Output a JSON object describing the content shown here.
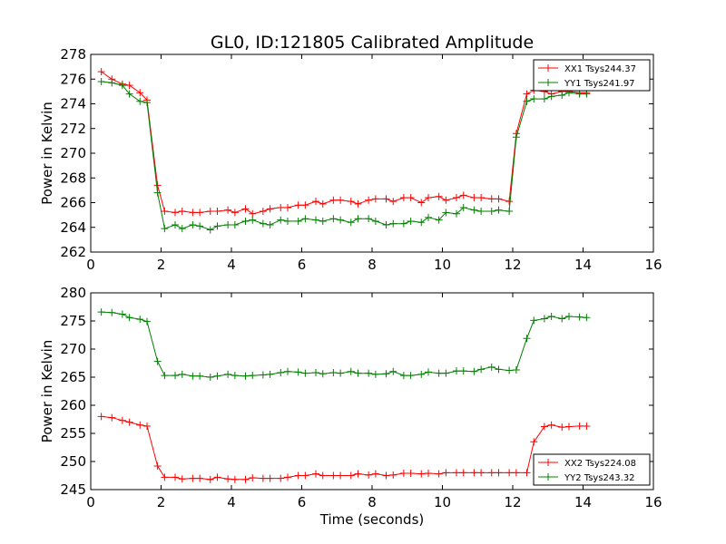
{
  "figure": {
    "title": "GL0, ID:121805 Calibrated Amplitude",
    "xlabel": "Time (seconds)"
  },
  "chart_data": [
    {
      "type": "line",
      "ylabel": "Power in Kelvin",
      "xlim": [
        0,
        16
      ],
      "ylim": [
        262,
        278
      ],
      "xticks": [
        "0",
        "2",
        "4",
        "6",
        "8",
        "10",
        "12",
        "14",
        "16"
      ],
      "yticks": [
        "262",
        "264",
        "266",
        "268",
        "270",
        "272",
        "274",
        "276",
        "278"
      ],
      "legend_position": "top-right",
      "x": [
        0.3,
        0.6,
        0.9,
        1.1,
        1.4,
        1.6,
        1.9,
        2.1,
        2.4,
        2.6,
        2.9,
        3.1,
        3.4,
        3.6,
        3.9,
        4.1,
        4.4,
        4.6,
        4.9,
        5.1,
        5.4,
        5.6,
        5.9,
        6.1,
        6.4,
        6.6,
        6.9,
        7.1,
        7.4,
        7.6,
        7.9,
        8.1,
        8.4,
        8.6,
        8.9,
        9.1,
        9.4,
        9.6,
        9.9,
        10.1,
        10.4,
        10.6,
        10.9,
        11.1,
        11.4,
        11.6,
        11.9,
        12.1,
        12.4,
        12.6,
        12.9,
        13.1,
        13.4,
        13.6,
        13.9,
        14.1
      ],
      "series": [
        {
          "name": "XX1 Tsys244.37",
          "color": "#ff0000",
          "values": [
            276.6,
            276.0,
            275.6,
            275.5,
            274.9,
            274.3,
            267.4,
            265.3,
            265.2,
            265.3,
            265.2,
            265.2,
            265.3,
            265.3,
            265.4,
            265.2,
            265.5,
            265.1,
            265.3,
            265.5,
            265.6,
            265.6,
            265.8,
            265.8,
            266.1,
            265.9,
            266.2,
            266.2,
            266.1,
            265.9,
            266.2,
            266.3,
            266.3,
            266.1,
            266.4,
            266.4,
            266.0,
            266.4,
            266.5,
            266.2,
            266.4,
            266.6,
            266.4,
            266.4,
            266.3,
            266.3,
            266.1,
            271.6,
            274.8,
            275.1,
            275.0,
            274.8,
            275.0,
            275.0,
            274.9,
            274.9
          ]
        },
        {
          "name": "YY1 Tsys241.97",
          "color": "#008000",
          "values": [
            275.8,
            275.7,
            275.5,
            274.8,
            274.2,
            274.1,
            266.8,
            263.9,
            264.2,
            263.9,
            264.2,
            264.1,
            263.8,
            264.1,
            264.2,
            264.2,
            264.5,
            264.6,
            264.3,
            264.2,
            264.6,
            264.5,
            264.5,
            264.7,
            264.6,
            264.5,
            264.7,
            264.6,
            264.4,
            264.7,
            264.7,
            264.5,
            264.2,
            264.3,
            264.3,
            264.5,
            264.4,
            264.8,
            264.6,
            265.2,
            265.1,
            265.6,
            265.4,
            265.3,
            265.3,
            265.4,
            265.3,
            271.3,
            274.2,
            274.4,
            274.4,
            274.6,
            274.7,
            274.9,
            274.8,
            274.8
          ]
        }
      ]
    },
    {
      "type": "line",
      "ylabel": "Power in Kelvin",
      "xlabel": "Time (seconds)",
      "xlim": [
        0,
        16
      ],
      "ylim": [
        245,
        280
      ],
      "xticks": [
        "0",
        "2",
        "4",
        "6",
        "8",
        "10",
        "12",
        "14",
        "16"
      ],
      "yticks": [
        "245",
        "250",
        "255",
        "260",
        "265",
        "270",
        "275",
        "280"
      ],
      "legend_position": "bottom-right",
      "x": [
        0.3,
        0.6,
        0.9,
        1.1,
        1.4,
        1.6,
        1.9,
        2.1,
        2.4,
        2.6,
        2.9,
        3.1,
        3.4,
        3.6,
        3.9,
        4.1,
        4.4,
        4.6,
        4.9,
        5.1,
        5.4,
        5.6,
        5.9,
        6.1,
        6.4,
        6.6,
        6.9,
        7.1,
        7.4,
        7.6,
        7.9,
        8.1,
        8.4,
        8.6,
        8.9,
        9.1,
        9.4,
        9.6,
        9.9,
        10.1,
        10.4,
        10.6,
        10.9,
        11.1,
        11.4,
        11.6,
        11.9,
        12.1,
        12.4,
        12.6,
        12.9,
        13.1,
        13.4,
        13.6,
        13.9,
        14.1
      ],
      "series": [
        {
          "name": "XX2 Tsys224.08",
          "color": "#ff0000",
          "values": [
            258.0,
            257.8,
            257.3,
            257.0,
            256.5,
            256.3,
            249.2,
            247.2,
            247.2,
            246.9,
            247.0,
            247.0,
            246.8,
            247.2,
            246.9,
            246.8,
            246.8,
            247.1,
            247.0,
            247.0,
            247.0,
            247.2,
            247.5,
            247.5,
            247.8,
            247.5,
            247.5,
            247.5,
            247.5,
            247.8,
            247.6,
            247.8,
            247.5,
            247.6,
            247.9,
            247.9,
            247.8,
            247.9,
            247.8,
            248.0,
            248.0,
            248.0,
            248.0,
            248.0,
            248.0,
            248.0,
            248.0,
            248.0,
            248.0,
            253.5,
            256.2,
            256.5,
            256.1,
            256.2,
            256.3,
            256.3
          ]
        },
        {
          "name": "YY2 Tsys243.32",
          "color": "#008000",
          "values": [
            276.6,
            276.5,
            276.2,
            275.6,
            275.3,
            274.9,
            267.8,
            265.3,
            265.3,
            265.5,
            265.2,
            265.2,
            265.0,
            265.2,
            265.5,
            265.3,
            265.2,
            265.3,
            265.4,
            265.5,
            265.8,
            266.0,
            265.9,
            265.7,
            265.8,
            265.6,
            265.8,
            265.7,
            266.0,
            265.7,
            265.7,
            265.5,
            265.6,
            266.0,
            265.3,
            265.3,
            265.5,
            265.9,
            265.7,
            265.7,
            266.1,
            266.1,
            266.0,
            266.4,
            266.8,
            266.4,
            266.2,
            266.3,
            271.9,
            275.1,
            275.4,
            275.8,
            275.4,
            275.8,
            275.7,
            275.6
          ]
        }
      ]
    }
  ]
}
